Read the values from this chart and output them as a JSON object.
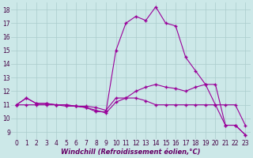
{
  "background_color": "#cce8e8",
  "grid_color": "#aacccc",
  "line_color": "#990099",
  "marker": "+",
  "markersize": 3.5,
  "markeredgewidth": 1.0,
  "linewidth": 0.8,
  "xlim": [
    -0.5,
    23.5
  ],
  "ylim": [
    8.5,
    18.5
  ],
  "yticks": [
    9,
    10,
    11,
    12,
    13,
    14,
    15,
    16,
    17,
    18
  ],
  "xticks": [
    0,
    1,
    2,
    3,
    4,
    5,
    6,
    7,
    8,
    9,
    10,
    11,
    12,
    13,
    14,
    15,
    16,
    17,
    18,
    19,
    20,
    21,
    22,
    23
  ],
  "xlabel": "Windchill (Refroidissement éolien,°C)",
  "xlabel_fontsize": 6,
  "tick_fontsize": 5.5,
  "curve1_x": [
    0,
    1,
    2,
    3,
    4,
    5,
    6,
    7,
    8,
    9,
    10,
    11,
    12,
    13,
    14,
    15,
    16,
    17,
    18,
    19,
    20,
    21,
    22,
    23
  ],
  "curve1_y": [
    11.0,
    11.5,
    11.1,
    11.1,
    11.0,
    11.0,
    10.9,
    10.9,
    10.8,
    10.6,
    11.5,
    11.5,
    11.5,
    11.3,
    11.0,
    11.0,
    11.0,
    11.0,
    11.0,
    11.0,
    11.0,
    11.0,
    11.0,
    9.5
  ],
  "curve2_x": [
    0,
    1,
    2,
    3,
    4,
    5,
    6,
    7,
    8,
    9,
    10,
    11,
    12,
    13,
    14,
    15,
    16,
    17,
    18,
    19,
    20,
    21,
    22,
    23
  ],
  "curve2_y": [
    11.0,
    11.5,
    11.1,
    11.1,
    11.0,
    11.0,
    10.9,
    10.8,
    10.5,
    10.5,
    15.0,
    17.0,
    17.5,
    17.2,
    18.2,
    17.0,
    16.8,
    14.5,
    13.5,
    12.5,
    12.5,
    9.5,
    9.5,
    8.8
  ],
  "curve3_x": [
    0,
    1,
    2,
    3,
    4,
    5,
    6,
    7,
    8,
    9,
    10,
    11,
    12,
    13,
    14,
    15,
    16,
    17,
    18,
    19,
    20,
    21,
    22,
    23
  ],
  "curve3_y": [
    11.0,
    11.0,
    11.0,
    11.0,
    11.0,
    10.9,
    10.9,
    10.8,
    10.6,
    10.4,
    11.2,
    11.5,
    12.0,
    12.3,
    12.5,
    12.3,
    12.2,
    12.0,
    12.3,
    12.5,
    11.0,
    9.5,
    9.5,
    8.8
  ],
  "label_color": "#660066"
}
